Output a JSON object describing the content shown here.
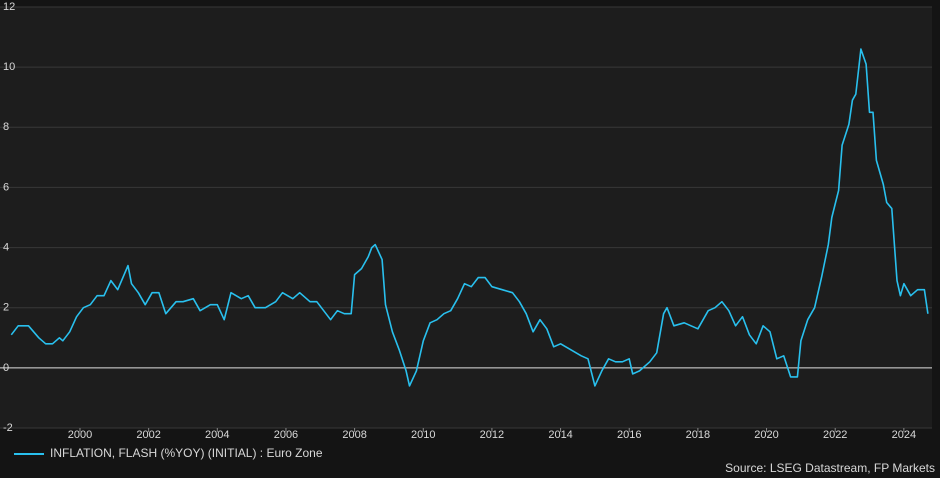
{
  "chart_data": {
    "type": "line",
    "source": "Source: LSEG Datastream, FP Markets",
    "x": [
      1998.0,
      1998.2,
      1998.5,
      1998.8,
      1999.0,
      1999.2,
      1999.4,
      1999.5,
      1999.7,
      1999.9,
      2000.1,
      2000.3,
      2000.5,
      2000.7,
      2000.9,
      2001.1,
      2001.4,
      2001.5,
      2001.7,
      2001.9,
      2002.1,
      2002.3,
      2002.5,
      2002.8,
      2003.0,
      2003.3,
      2003.5,
      2003.8,
      2004.0,
      2004.2,
      2004.4,
      2004.7,
      2004.9,
      2005.1,
      2005.4,
      2005.7,
      2005.9,
      2006.2,
      2006.4,
      2006.7,
      2006.9,
      2007.1,
      2007.3,
      2007.5,
      2007.7,
      2007.9,
      2008.0,
      2008.2,
      2008.4,
      2008.5,
      2008.6,
      2008.8,
      2008.9,
      2009.1,
      2009.3,
      2009.5,
      2009.6,
      2009.8,
      2010.0,
      2010.2,
      2010.4,
      2010.6,
      2010.8,
      2011.0,
      2011.2,
      2011.4,
      2011.6,
      2011.8,
      2012.0,
      2012.3,
      2012.6,
      2012.8,
      2013.0,
      2013.2,
      2013.4,
      2013.6,
      2013.8,
      2014.0,
      2014.3,
      2014.6,
      2014.8,
      2015.0,
      2015.2,
      2015.4,
      2015.6,
      2015.8,
      2016.0,
      2016.1,
      2016.3,
      2016.6,
      2016.8,
      2017.0,
      2017.1,
      2017.3,
      2017.6,
      2017.8,
      2018.0,
      2018.3,
      2018.5,
      2018.7,
      2018.9,
      2019.1,
      2019.3,
      2019.5,
      2019.7,
      2019.9,
      2020.1,
      2020.3,
      2020.5,
      2020.7,
      2020.9,
      2021.0,
      2021.2,
      2021.4,
      2021.6,
      2021.8,
      2021.9,
      2022.1,
      2022.2,
      2022.4,
      2022.5,
      2022.6,
      2022.75,
      2022.9,
      2023.0,
      2023.1,
      2023.2,
      2023.4,
      2023.5,
      2023.65,
      2023.8,
      2023.9,
      2024.0,
      2024.2,
      2024.4,
      2024.6,
      2024.7
    ],
    "series": [
      {
        "name": "INFLATION, FLASH (%YOY) (INITIAL) : Euro Zone",
        "color": "#29c0ee",
        "values": [
          1.1,
          1.4,
          1.4,
          1.0,
          0.8,
          0.8,
          1.0,
          0.9,
          1.2,
          1.7,
          2.0,
          2.1,
          2.4,
          2.4,
          2.9,
          2.6,
          3.4,
          2.8,
          2.5,
          2.1,
          2.5,
          2.5,
          1.8,
          2.2,
          2.2,
          2.3,
          1.9,
          2.1,
          2.1,
          1.6,
          2.5,
          2.3,
          2.4,
          2.0,
          2.0,
          2.2,
          2.5,
          2.3,
          2.5,
          2.2,
          2.2,
          1.9,
          1.6,
          1.9,
          1.8,
          1.8,
          3.1,
          3.3,
          3.7,
          4.0,
          4.1,
          3.6,
          2.1,
          1.2,
          0.6,
          -0.1,
          -0.6,
          -0.1,
          0.9,
          1.5,
          1.6,
          1.8,
          1.9,
          2.3,
          2.8,
          2.7,
          3.0,
          3.0,
          2.7,
          2.6,
          2.5,
          2.2,
          1.8,
          1.2,
          1.6,
          1.3,
          0.7,
          0.8,
          0.6,
          0.4,
          0.3,
          -0.6,
          -0.1,
          0.3,
          0.2,
          0.2,
          0.3,
          -0.2,
          -0.1,
          0.2,
          0.5,
          1.8,
          2.0,
          1.4,
          1.5,
          1.4,
          1.3,
          1.9,
          2.0,
          2.2,
          1.9,
          1.4,
          1.7,
          1.1,
          0.8,
          1.4,
          1.2,
          0.3,
          0.4,
          -0.3,
          -0.3,
          0.9,
          1.6,
          2.0,
          3.0,
          4.1,
          5.0,
          5.9,
          7.4,
          8.1,
          8.9,
          9.1,
          10.6,
          10.1,
          8.5,
          8.5,
          6.9,
          6.1,
          5.5,
          5.3,
          2.9,
          2.4,
          2.8,
          2.4,
          2.6,
          2.6,
          1.8
        ]
      }
    ],
    "xlim": [
      1997.67,
      2024.82
    ],
    "xticks": [
      2000,
      2002,
      2004,
      2006,
      2008,
      2010,
      2012,
      2014,
      2016,
      2018,
      2020,
      2022,
      2024
    ],
    "ylim": [
      -2,
      12
    ],
    "yticks": [
      -2,
      0,
      2,
      4,
      6,
      8,
      10,
      12
    ],
    "grid": true
  }
}
